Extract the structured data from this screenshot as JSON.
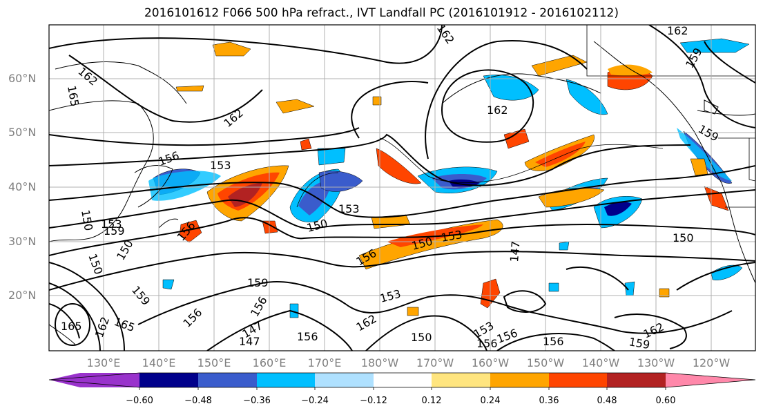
{
  "title": "2016101612 F066 500 hPa refract., IVT Landfall PC (2016101912 - 2016102112)",
  "lat_labels": [
    "60°N",
    "50°N",
    "40°N",
    "30°N",
    "20°N"
  ],
  "lon_labels": [
    "130°E",
    "140°E",
    "150°E",
    "160°E",
    "170°E",
    "180°W",
    "170°W",
    "160°W",
    "150°W",
    "140°W",
    "130°W",
    "120°W"
  ],
  "colorbar": {
    "colors": [
      "#9932cc",
      "#00008b",
      "#3a5ccc",
      "#00bfff",
      "#afe1ff",
      "#ffffff",
      "#ffe57f",
      "#ffa500",
      "#ff4500",
      "#b22222",
      "#ff88aa"
    ],
    "tick_labels": [
      "−0.60",
      "−0.48",
      "−0.36",
      "−0.24",
      "−0.12",
      "0.12",
      "0.24",
      "0.36",
      "0.48",
      "0.60"
    ]
  },
  "contour_labels": [
    "162",
    "165",
    "162",
    "162",
    "162",
    "159",
    "156",
    "153",
    "153",
    "150",
    "150",
    "153",
    "150",
    "156",
    "153",
    "150",
    "147",
    "147",
    "159",
    "156",
    "153",
    "162",
    "159",
    "150",
    "156",
    "156",
    "159",
    "162",
    "165",
    "162",
    "156",
    "147",
    "150",
    "156",
    "159",
    "153",
    "156",
    "150",
    "156",
    "165",
    "159",
    "162"
  ]
}
